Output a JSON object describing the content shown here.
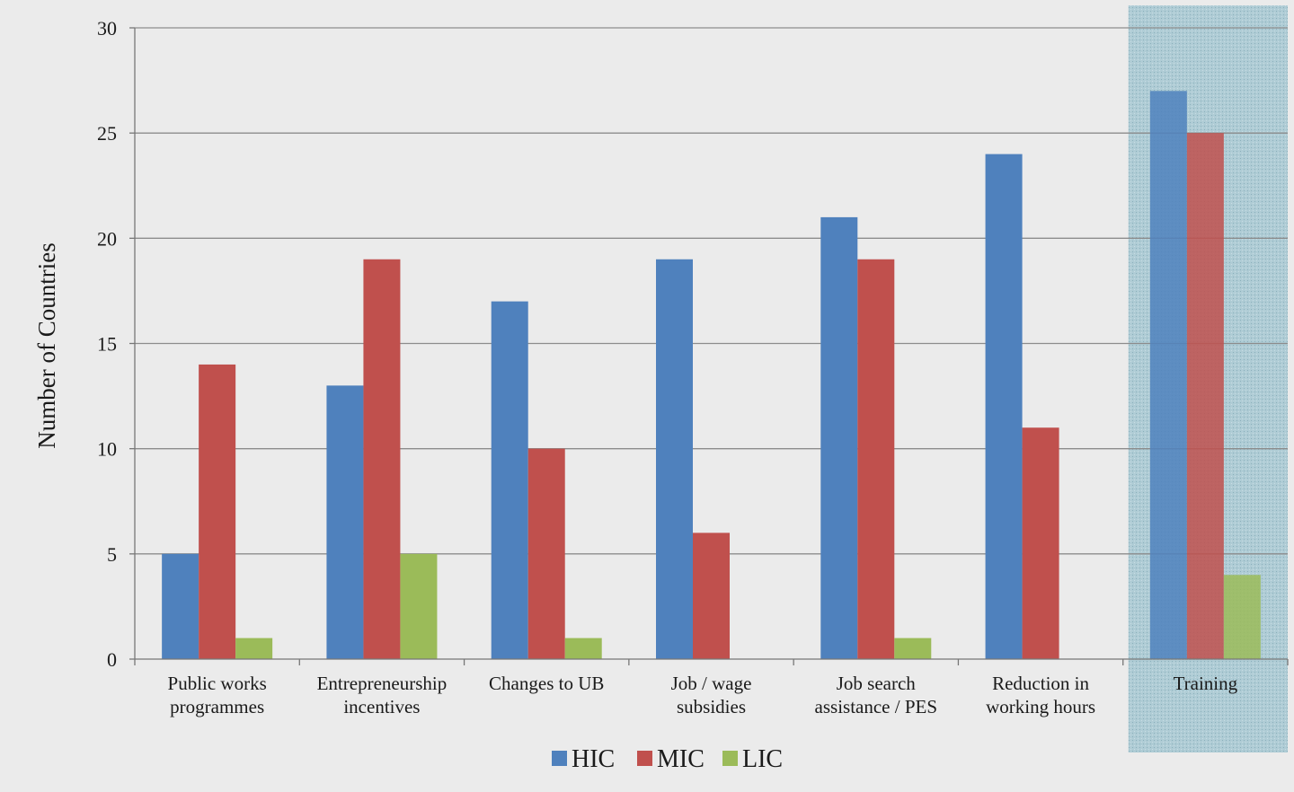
{
  "chart_data": {
    "type": "bar",
    "ylabel": "Number of Countries",
    "xlabel": "",
    "ylim": [
      0,
      30
    ],
    "yticks": [
      "0",
      "5",
      "10",
      "15",
      "20",
      "25",
      "30"
    ],
    "grid": true,
    "legend_position": "bottom",
    "highlighted_category": "Training",
    "categories": [
      [
        "Public works",
        "programmes"
      ],
      [
        "Entrepreneurship",
        "incentives"
      ],
      [
        "Changes to UB"
      ],
      [
        "Job / wage",
        "subsidies"
      ],
      [
        "Job search",
        "assistance / PES"
      ],
      [
        "Reduction in",
        "working hours"
      ],
      [
        "Training"
      ]
    ],
    "series": [
      {
        "name": "HIC",
        "color": "#4f81bd",
        "values": [
          5,
          13,
          17,
          19,
          21,
          24,
          27
        ]
      },
      {
        "name": "MIC",
        "color": "#c0504d",
        "values": [
          14,
          19,
          10,
          6,
          19,
          11,
          25
        ]
      },
      {
        "name": "LIC",
        "color": "#9bbb59",
        "values": [
          1,
          5,
          1,
          0,
          1,
          0,
          4
        ]
      }
    ]
  }
}
